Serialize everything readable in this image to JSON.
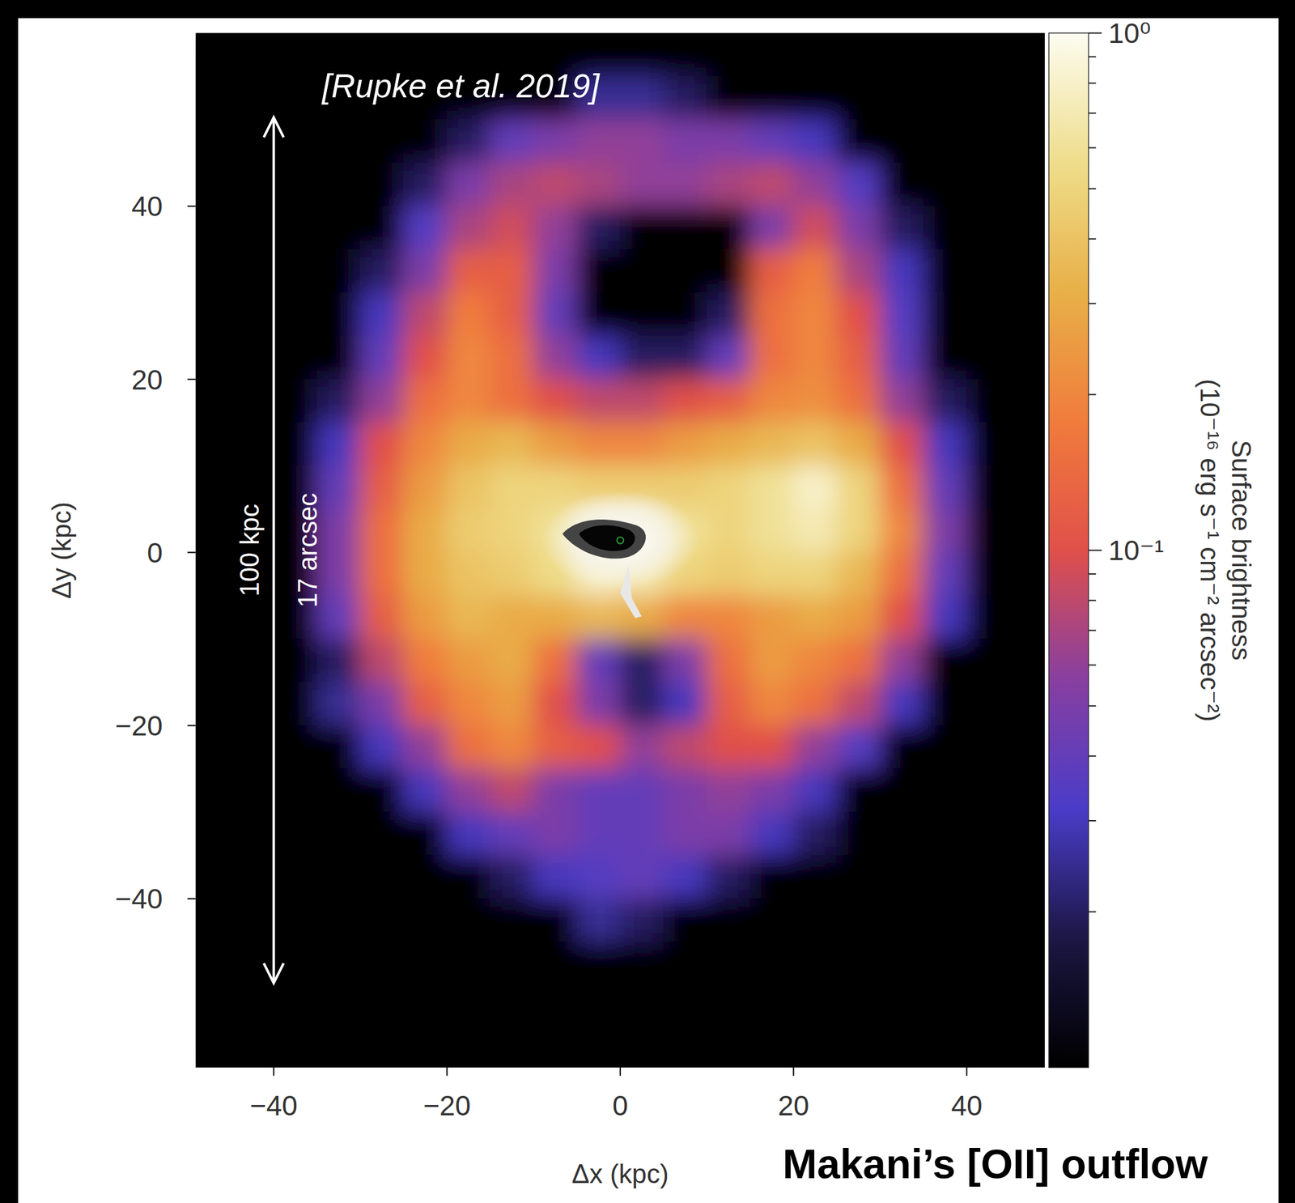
{
  "chart_data": {
    "type": "heatmap",
    "title": "Makani’s [OII] outflow",
    "annotation": "[Rupke et al. 2019]",
    "x_label": "Δx (kpc)",
    "y_label": "Δy (kpc)",
    "xlim": [
      -49,
      49
    ],
    "ylim": [
      -59.5,
      60
    ],
    "xticks": [
      -40,
      -20,
      0,
      20,
      40
    ],
    "yticks": [
      -40,
      -20,
      0,
      20,
      40
    ],
    "x": [
      -47.5,
      -42.5,
      -37.5,
      -32.5,
      -27.5,
      -22.5,
      -17.5,
      -12.5,
      -7.5,
      -2.5,
      2.5,
      7.5,
      12.5,
      17.5,
      22.5,
      27.5,
      32.5,
      37.5,
      42.5,
      47.5
    ],
    "y": [
      57.5,
      52.5,
      47.5,
      42.5,
      37.5,
      32.5,
      27.5,
      22.5,
      17.5,
      12.5,
      7.5,
      2.5,
      -2.5,
      -7.5,
      -12.5,
      -17.5,
      -22.5,
      -27.5,
      -32.5,
      -37.5,
      -42.5,
      -47.5,
      -52.5,
      -57.5
    ],
    "cells": [
      [
        0,
        0,
        0,
        0,
        0,
        0,
        0,
        0,
        0,
        0,
        0,
        0,
        0,
        0,
        0,
        0,
        0,
        0,
        0,
        0
      ],
      [
        0,
        0,
        0,
        0,
        0,
        0,
        0,
        0,
        0,
        0.025,
        0.025,
        0.02,
        0,
        0,
        0,
        0,
        0,
        0,
        0,
        0
      ],
      [
        0,
        0,
        0,
        0,
        0,
        0,
        0.02,
        0.04,
        0.05,
        0.06,
        0.06,
        0.05,
        0.05,
        0.04,
        0.03,
        0,
        0,
        0,
        0,
        0
      ],
      [
        0,
        0,
        0,
        0,
        0,
        0.02,
        0.05,
        0.07,
        0.08,
        0.07,
        0.06,
        0.06,
        0.07,
        0.08,
        0.06,
        0.035,
        0,
        0,
        0,
        0
      ],
      [
        0,
        0,
        0,
        0,
        0,
        0.035,
        0.07,
        0.09,
        0.06,
        0.02,
        0,
        0,
        0,
        0.05,
        0.09,
        0.05,
        0.02,
        0,
        0,
        0
      ],
      [
        0,
        0,
        0,
        0,
        0.02,
        0.05,
        0.12,
        0.12,
        0.05,
        0,
        0,
        0,
        0,
        0.12,
        0.18,
        0.07,
        0.03,
        0,
        0,
        0
      ],
      [
        0,
        0,
        0,
        0,
        0.03,
        0.08,
        0.18,
        0.12,
        0.04,
        0,
        0,
        0,
        0.02,
        0.15,
        0.2,
        0.1,
        0.035,
        0,
        0,
        0
      ],
      [
        0,
        0,
        0,
        0,
        0.04,
        0.1,
        0.2,
        0.15,
        0.06,
        0.03,
        0.02,
        0.02,
        0.04,
        0.15,
        0.2,
        0.12,
        0.04,
        0,
        0,
        0
      ],
      [
        0,
        0,
        0,
        0.02,
        0.06,
        0.15,
        0.2,
        0.15,
        0.1,
        0.08,
        0.08,
        0.1,
        0.12,
        0.2,
        0.22,
        0.15,
        0.06,
        0.02,
        0,
        0
      ],
      [
        0,
        0,
        0,
        0.03,
        0.1,
        0.2,
        0.3,
        0.35,
        0.25,
        0.2,
        0.2,
        0.25,
        0.3,
        0.35,
        0.4,
        0.3,
        0.1,
        0.03,
        0,
        0
      ],
      [
        0,
        0,
        0,
        0.04,
        0.12,
        0.25,
        0.4,
        0.5,
        0.5,
        0.45,
        0.45,
        0.45,
        0.5,
        0.6,
        0.8,
        0.5,
        0.15,
        0.04,
        0,
        0
      ],
      [
        0,
        0,
        0,
        0.05,
        0.15,
        0.3,
        0.45,
        0.5,
        0.6,
        0.9,
        0.9,
        0.6,
        0.5,
        0.6,
        0.7,
        0.5,
        0.2,
        0.05,
        0,
        0
      ],
      [
        0,
        0,
        0,
        0.05,
        0.15,
        0.3,
        0.4,
        0.45,
        0.55,
        0.8,
        0.7,
        0.5,
        0.45,
        0.5,
        0.5,
        0.35,
        0.15,
        0.04,
        0,
        0
      ],
      [
        0,
        0,
        0,
        0.04,
        0.12,
        0.25,
        0.35,
        0.3,
        0.3,
        0.35,
        0.3,
        0.2,
        0.2,
        0.25,
        0.3,
        0.25,
        0.1,
        0.03,
        0,
        0
      ],
      [
        0,
        0,
        0,
        0.02,
        0.08,
        0.18,
        0.25,
        0.3,
        0.15,
        0.04,
        0.02,
        0.05,
        0.15,
        0.25,
        0.2,
        0.15,
        0.06,
        0,
        0,
        0
      ],
      [
        0,
        0,
        0,
        0.025,
        0.05,
        0.12,
        0.2,
        0.25,
        0.1,
        0.05,
        0.02,
        0.03,
        0.12,
        0.2,
        0.15,
        0.08,
        0.03,
        0,
        0,
        0
      ],
      [
        0,
        0,
        0,
        0,
        0.03,
        0.06,
        0.15,
        0.2,
        0.12,
        0.1,
        0.06,
        0.08,
        0.1,
        0.1,
        0.06,
        0.035,
        0,
        0,
        0,
        0
      ],
      [
        0,
        0,
        0,
        0,
        0,
        0.03,
        0.06,
        0.08,
        0.05,
        0.04,
        0.04,
        0.05,
        0.06,
        0.05,
        0.03,
        0,
        0,
        0,
        0,
        0
      ],
      [
        0,
        0,
        0,
        0,
        0,
        0,
        0.03,
        0.04,
        0.05,
        0.04,
        0.04,
        0.05,
        0.05,
        0.03,
        0.02,
        0,
        0,
        0,
        0,
        0
      ],
      [
        0,
        0,
        0,
        0,
        0,
        0,
        0,
        0.02,
        0.03,
        0.035,
        0.04,
        0.03,
        0.02,
        0,
        0,
        0,
        0,
        0,
        0,
        0
      ],
      [
        0,
        0,
        0,
        0,
        0,
        0,
        0,
        0,
        0,
        0.025,
        0.02,
        0,
        0,
        0,
        0,
        0,
        0,
        0,
        0,
        0
      ],
      [
        0,
        0,
        0,
        0,
        0,
        0,
        0,
        0,
        0,
        0,
        0,
        0,
        0,
        0,
        0,
        0,
        0,
        0,
        0,
        0
      ],
      [
        0,
        0,
        0,
        0,
        0,
        0,
        0,
        0,
        0,
        0,
        0,
        0,
        0,
        0,
        0,
        0,
        0,
        0,
        0,
        0
      ],
      [
        0,
        0,
        0,
        0,
        0,
        0,
        0,
        0,
        0,
        0,
        0,
        0,
        0,
        0,
        0,
        0,
        0,
        0,
        0,
        0
      ]
    ],
    "color_label": [
      "Surface brightness",
      "(10⁻¹⁶ erg s⁻¹ cm⁻² arcsec⁻²)"
    ],
    "color_scale": "log",
    "color_range": [
      0.01,
      1
    ],
    "color_ticks": [
      {
        "value": 1,
        "label": "10⁰"
      },
      {
        "value": 0.1,
        "label": "10⁻¹"
      }
    ],
    "color_minor_ticks": [
      0.02,
      0.03,
      0.04,
      0.05,
      0.06,
      0.07,
      0.08,
      0.09,
      0.2,
      0.3,
      0.4,
      0.5,
      0.6,
      0.7,
      0.8,
      0.9
    ],
    "scale_bar": {
      "length": 100,
      "labels": [
        "100 kpc",
        "17 arcsec"
      ]
    }
  }
}
